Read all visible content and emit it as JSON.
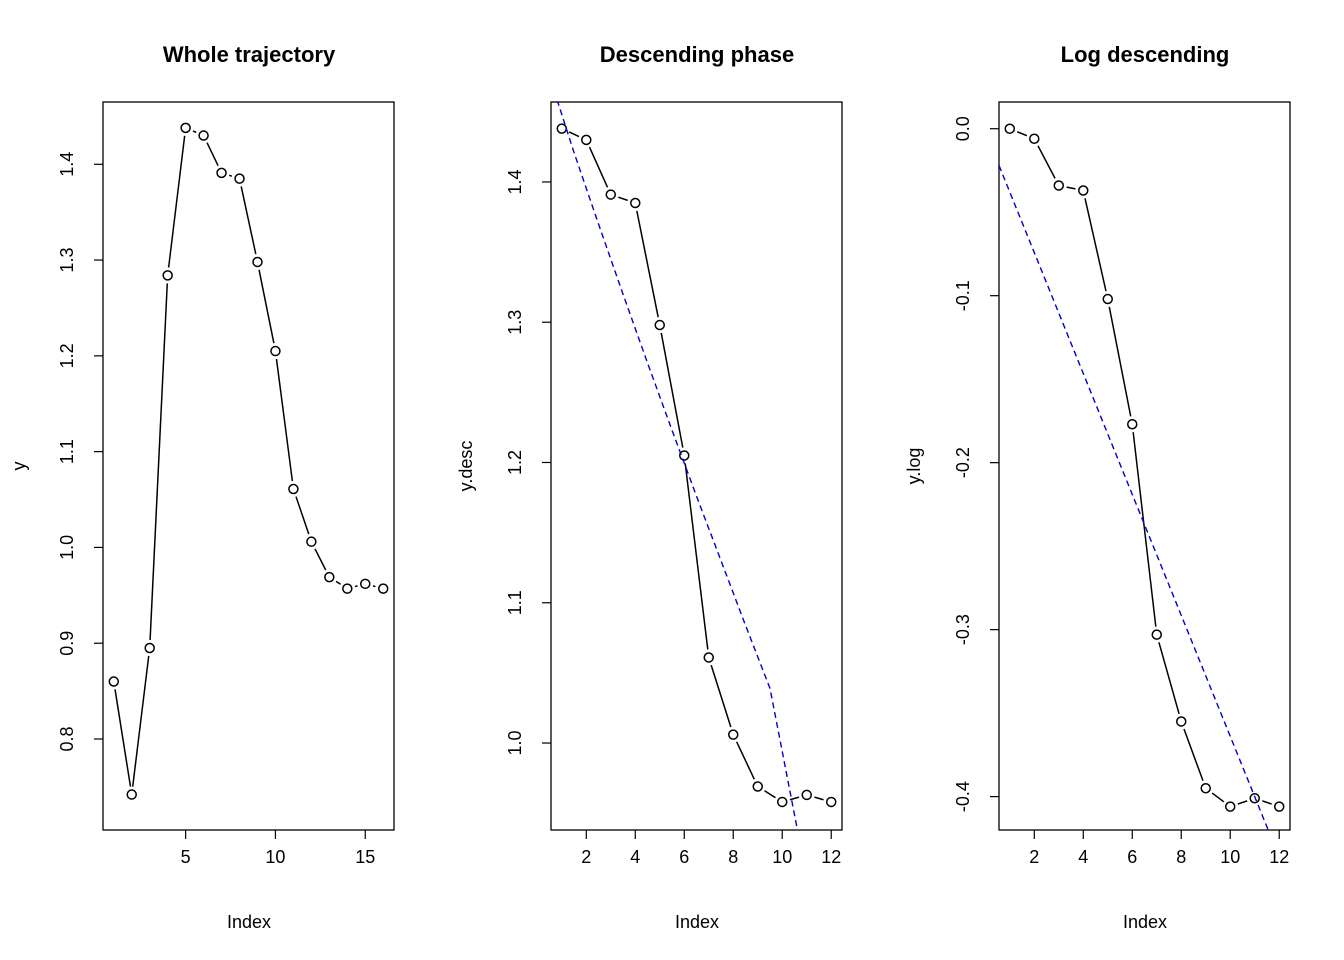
{
  "chart_data": [
    {
      "type": "line",
      "title": "Whole trajectory",
      "xlabel": "Index",
      "ylabel": "y",
      "xlim": [
        0.4,
        16.6
      ],
      "ylim": [
        0.705,
        1.465
      ],
      "xticks": [
        5,
        10,
        15
      ],
      "yticks": [
        0.8,
        0.9,
        1.0,
        1.1,
        1.2,
        1.3,
        1.4
      ],
      "xtick_labels": [
        "5",
        "10",
        "15"
      ],
      "ytick_labels": [
        "0.8",
        "0.9",
        "1.0",
        "1.1",
        "1.2",
        "1.3",
        "1.4"
      ],
      "grid": false,
      "series": [
        {
          "x": [
            1,
            2,
            3,
            4,
            5,
            6,
            7,
            8,
            9,
            10,
            11,
            12,
            13,
            14,
            15,
            16
          ],
          "values": [
            0.86,
            0.742,
            0.895,
            1.284,
            1.438,
            1.43,
            1.391,
            1.385,
            1.298,
            1.205,
            1.061,
            1.006,
            0.969,
            0.957,
            0.962,
            0.957
          ],
          "style": "both",
          "color": "#000000"
        }
      ]
    },
    {
      "type": "line",
      "title": "Descending phase",
      "xlabel": "Index",
      "ylabel": "y.desc",
      "xlim": [
        0.56,
        12.44
      ],
      "ylim": [
        0.938,
        1.457
      ],
      "xticks": [
        2,
        4,
        6,
        8,
        10,
        12
      ],
      "yticks": [
        1.0,
        1.1,
        1.2,
        1.3,
        1.4
      ],
      "xtick_labels": [
        "2",
        "4",
        "6",
        "8",
        "10",
        "12"
      ],
      "ytick_labels": [
        "1.0",
        "1.1",
        "1.2",
        "1.3",
        "1.4"
      ],
      "grid": false,
      "series": [
        {
          "x": [
            1,
            2,
            3,
            4,
            5,
            6,
            7,
            8,
            9,
            10,
            11,
            12
          ],
          "values": [
            1.438,
            1.43,
            1.391,
            1.385,
            1.298,
            1.205,
            1.061,
            1.006,
            0.969,
            0.958,
            0.963,
            0.958
          ],
          "style": "both",
          "color": "#000000"
        },
        {
          "x": [
            0.56,
            1.5,
            2.5,
            3.5,
            4.5,
            5.5,
            6.5,
            7.5,
            8.5,
            9.5,
            10.6
          ],
          "values": [
            1.472,
            1.421,
            1.37,
            1.32,
            1.271,
            1.223,
            1.176,
            1.13,
            1.084,
            1.039,
            0.94
          ],
          "style": "dashed",
          "color": "#0000cc"
        }
      ]
    },
    {
      "type": "line",
      "title": "Log descending",
      "xlabel": "Index",
      "ylabel": "y.log",
      "xlim": [
        0.56,
        12.44
      ],
      "ylim": [
        -0.42,
        0.016
      ],
      "xticks": [
        2,
        4,
        6,
        8,
        10,
        12
      ],
      "yticks": [
        -0.4,
        -0.3,
        -0.2,
        -0.1,
        0.0
      ],
      "xtick_labels": [
        "2",
        "4",
        "6",
        "8",
        "10",
        "12"
      ],
      "ytick_labels": [
        "-0.4",
        "-0.3",
        "-0.2",
        "-0.1",
        "0.0"
      ],
      "grid": false,
      "series": [
        {
          "x": [
            1,
            2,
            3,
            4,
            5,
            6,
            7,
            8,
            9,
            10,
            11,
            12
          ],
          "values": [
            0.0,
            -0.006,
            -0.034,
            -0.037,
            -0.102,
            -0.177,
            -0.303,
            -0.355,
            -0.395,
            -0.406,
            -0.401,
            -0.406
          ],
          "style": "both",
          "color": "#000000"
        },
        {
          "x": [
            0.56,
            11.55
          ],
          "values": [
            -0.022,
            -0.42
          ],
          "style": "dashed",
          "color": "#0000cc"
        }
      ]
    }
  ]
}
